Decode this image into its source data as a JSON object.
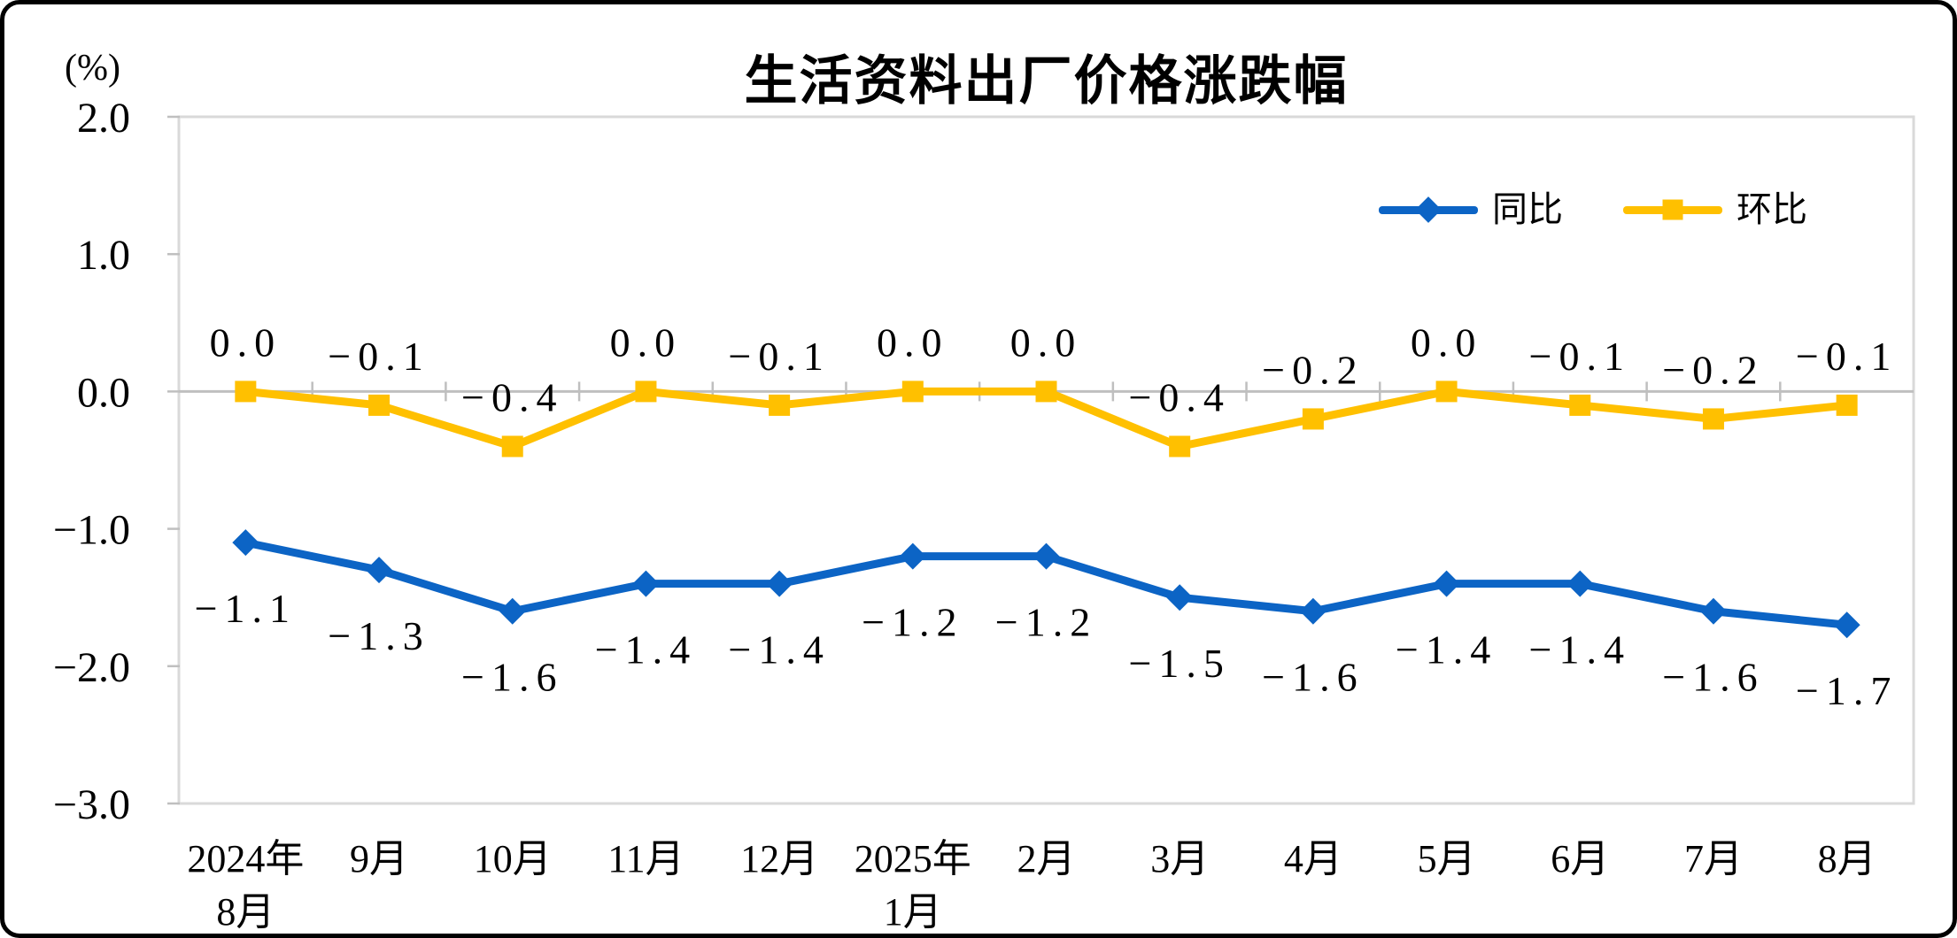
{
  "page": {
    "background": "#ffffff",
    "outer_border_color": "#000000"
  },
  "chart_data": {
    "type": "line",
    "title": "生活资料出厂价格涨跌幅",
    "unit": "(%)",
    "categories": [
      [
        "2024年",
        "8月"
      ],
      [
        "9月"
      ],
      [
        "10月"
      ],
      [
        "11月"
      ],
      [
        "12月"
      ],
      [
        "2025年",
        "1月"
      ],
      [
        "2月"
      ],
      [
        "3月"
      ],
      [
        "4月"
      ],
      [
        "5月"
      ],
      [
        "6月"
      ],
      [
        "7月"
      ],
      [
        "8月"
      ]
    ],
    "series": [
      {
        "name": "同比",
        "marker": "diamond",
        "color": "#0C64C5",
        "label_position": "below",
        "values": [
          -1.1,
          -1.3,
          -1.6,
          -1.4,
          -1.4,
          -1.2,
          -1.2,
          -1.5,
          -1.6,
          -1.4,
          -1.4,
          -1.6,
          -1.7
        ],
        "labels": [
          "−1.1",
          "−1.3",
          "−1.6",
          "−1.4",
          "−1.4",
          "−1.2",
          "−1.2",
          "−1.5",
          "−1.6",
          "−1.4",
          "−1.4",
          "−1.6",
          "−1.7"
        ]
      },
      {
        "name": "环比",
        "marker": "square",
        "color": "#FFC000",
        "label_position": "above",
        "values": [
          0.0,
          -0.1,
          -0.4,
          0.0,
          -0.1,
          0.0,
          0.0,
          -0.4,
          -0.2,
          0.0,
          -0.1,
          -0.2,
          -0.1
        ],
        "labels": [
          "0.0",
          "−0.1",
          "−0.4",
          "0.0",
          "−0.1",
          "0.0",
          "0.0",
          "−0.4",
          "−0.2",
          "0.0",
          "−0.1",
          "−0.2",
          "−0.1"
        ]
      }
    ],
    "y_axis": {
      "min": -3.0,
      "max": 2.0,
      "ticks": [
        2.0,
        1.0,
        0.0,
        -1.0,
        -2.0,
        -3.0
      ],
      "tick_labels": [
        "2.0",
        "1.0",
        "0.0",
        "−1.0",
        "−2.0",
        "−3.0"
      ]
    },
    "x_axis": {
      "baseline_value": 0.0,
      "tick_marks": "category-boundaries-on-zero-line"
    },
    "legend_position": "top-right-inside",
    "gridlines": "none",
    "styles": {
      "plot_border_color": "#D9D9D9",
      "axis_line_color": "#BFBFBF",
      "label_color": "#000000"
    }
  }
}
